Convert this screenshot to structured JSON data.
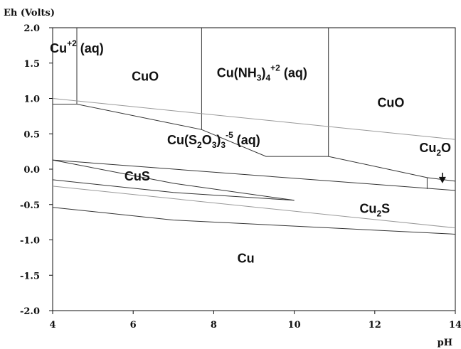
{
  "chart_data": {
    "type": "line",
    "title": "",
    "xlabel": "pH",
    "ylabel": "Eh (Volts)",
    "xlim": [
      4,
      14
    ],
    "ylim": [
      -2.0,
      2.0
    ],
    "grid": false,
    "legend": "none",
    "x_ticks": [
      "4",
      "6",
      "8",
      "10",
      "12",
      "14"
    ],
    "y_ticks": [
      "2.0",
      "1.5",
      "1.0",
      "0.5",
      "0.0",
      "-0.5",
      "-1.0",
      "-1.5",
      "-2.0"
    ],
    "colors": {
      "boundary": "#333333",
      "water_limit": "#999999",
      "text": "#111111"
    },
    "regions": [
      {
        "label": "Cu+2 (aq)",
        "x": 4.6,
        "y": 1.65
      },
      {
        "label": "CuO",
        "x": 6.3,
        "y": 1.25
      },
      {
        "label": "Cu(NH3)4+2 (aq)",
        "x": 9.2,
        "y": 1.3
      },
      {
        "label": "CuO",
        "x": 12.4,
        "y": 0.88
      },
      {
        "label": "Cu(S2O3)3-5 (aq)",
        "x": 8.0,
        "y": 0.35
      },
      {
        "label": "Cu2O",
        "x": 13.5,
        "y": 0.24
      },
      {
        "label": "CuS",
        "x": 6.1,
        "y": -0.16
      },
      {
        "label": "Cu2S",
        "x": 12.0,
        "y": -0.62
      },
      {
        "label": "Cu",
        "x": 8.8,
        "y": -1.32
      }
    ],
    "series": [
      {
        "values": [
          [
            4.6,
            2.0
          ],
          [
            4.6,
            0.92
          ]
        ]
      },
      {
        "values": [
          [
            4.0,
            0.92
          ],
          [
            4.6,
            0.92
          ],
          [
            7.7,
            0.56
          ],
          [
            9.3,
            0.18
          ],
          [
            10.85,
            0.18
          ],
          [
            13.3,
            -0.12
          ],
          [
            14.0,
            -0.17
          ]
        ]
      },
      {
        "values": [
          [
            7.7,
            2.0
          ],
          [
            7.7,
            0.56
          ]
        ]
      },
      {
        "values": [
          [
            10.85,
            2.0
          ],
          [
            10.85,
            0.18
          ]
        ]
      },
      {
        "values": [
          [
            13.3,
            -0.12
          ],
          [
            13.3,
            -0.28
          ]
        ]
      },
      {
        "values": [
          [
            4.0,
            0.13
          ],
          [
            14.0,
            -0.3
          ]
        ]
      },
      {
        "values": [
          [
            4.0,
            -0.15
          ],
          [
            7.0,
            -0.33
          ],
          [
            10.0,
            -0.44
          ]
        ]
      },
      {
        "values": [
          [
            4.0,
            0.13
          ],
          [
            7.0,
            -0.2
          ],
          [
            10.0,
            -0.44
          ]
        ]
      },
      {
        "values": [
          [
            4.0,
            -0.54
          ],
          [
            7.0,
            -0.72
          ],
          [
            14.0,
            -0.92
          ]
        ]
      },
      {
        "values": [
          [
            4.0,
            1.0
          ],
          [
            14.0,
            0.42
          ]
        ]
      },
      {
        "values": [
          [
            4.0,
            -0.24
          ],
          [
            14.0,
            -0.83
          ]
        ]
      }
    ],
    "annotations": [
      {
        "type": "arrow",
        "from": [
          13.68,
          -0.05
        ],
        "to": [
          13.68,
          -0.2
        ]
      }
    ]
  }
}
